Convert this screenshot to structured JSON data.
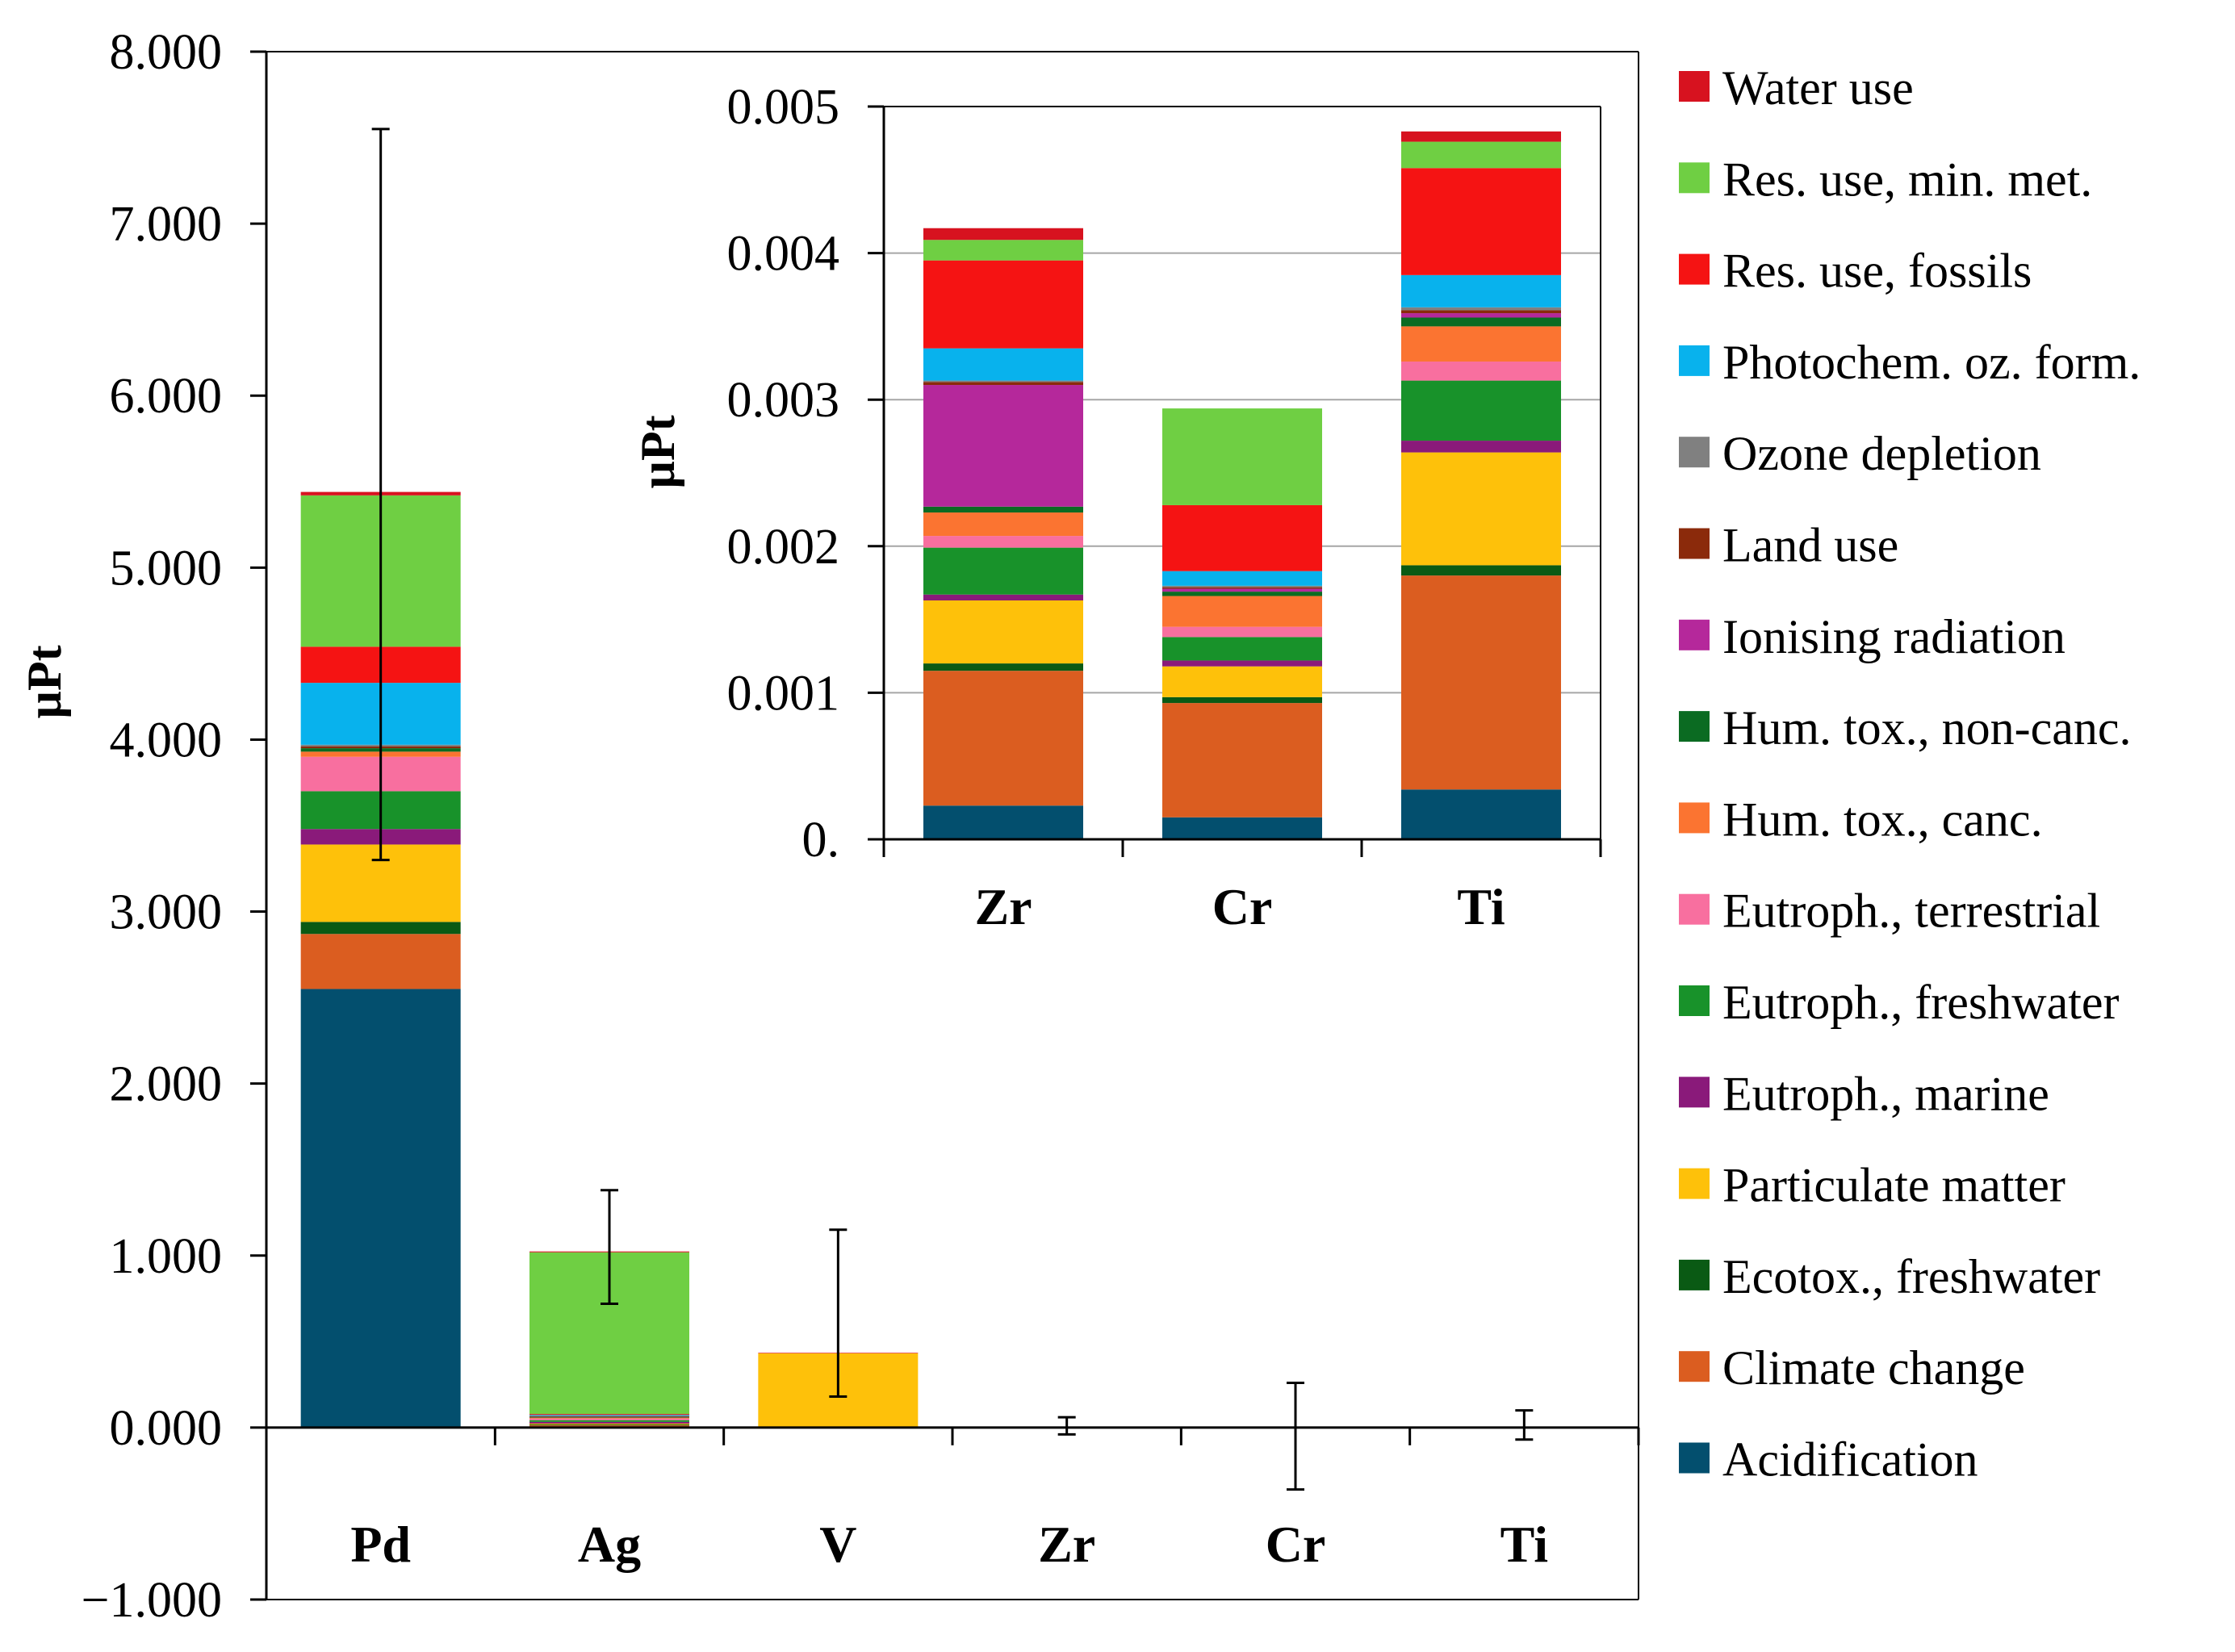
{
  "palette": {
    "Acidification": "#034f6e",
    "Climate change": "#db5d20",
    "Ecotox., freshwater": "#0a5a14",
    "Particulate matter": "#fec10a",
    "Eutroph., marine": "#8a1a7a",
    "Eutroph., freshwater": "#18922a",
    "Eutroph., terrestrial": "#f86f9f",
    "Hum. tox., canc.": "#fb7431",
    "Hum. tox., non-canc.": "#0b6b22",
    "Ionising radiation": "#b5289b",
    "Land use": "#8b2a0b",
    "Ozone depletion": "#808080",
    "Photochem. oz. form.": "#08b2ed",
    "Res. use, fossils": "#f51313",
    "Res. use, min. met.": "#6fcf43",
    "Water use": "#d7121f"
  },
  "legend": {
    "items": [
      {
        "label": "Water use",
        "color": "#d7121f"
      },
      {
        "label": "Res. use, min. met.",
        "color": "#6fcf43"
      },
      {
        "label": "Res. use, fossils",
        "color": "#f51313"
      },
      {
        "label": "Photochem. oz. form.",
        "color": "#08b2ed"
      },
      {
        "label": "Ozone depletion",
        "color": "#808080"
      },
      {
        "label": "Land use",
        "color": "#8b2a0b"
      },
      {
        "label": "Ionising radiation",
        "color": "#b5289b"
      },
      {
        "label": "Hum. tox., non-canc.",
        "color": "#0b6b22"
      },
      {
        "label": "Hum. tox., canc.",
        "color": "#fb7431"
      },
      {
        "label": "Eutroph., terrestrial",
        "color": "#f86f9f"
      },
      {
        "label": "Eutroph., freshwater",
        "color": "#18922a"
      },
      {
        "label": "Eutroph., marine",
        "color": "#8a1a7a"
      },
      {
        "label": "Particulate matter",
        "color": "#fec10a"
      },
      {
        "label": "Ecotox., freshwater",
        "color": "#0a5a14"
      },
      {
        "label": "Climate change",
        "color": "#db5d20"
      },
      {
        "label": "Acidification",
        "color": "#034f6e"
      }
    ]
  },
  "chart_data": [
    {
      "type": "bar",
      "stacked": true,
      "title": "",
      "xlabel": "",
      "ylabel": "µPt",
      "ylim": [
        -1,
        8
      ],
      "ytick_labels": [
        "−1.000",
        "0.000",
        "1.000",
        "2.000",
        "3.000",
        "4.000",
        "5.000",
        "6.000",
        "7.000",
        "8.000"
      ],
      "categories": [
        "Pd",
        "Ag",
        "V",
        "Zr",
        "Cr",
        "Ti"
      ],
      "error_bars": [
        {
          "low": 3.3,
          "high": 7.55
        },
        {
          "low": 0.72,
          "high": 1.38
        },
        {
          "low": 0.18,
          "high": 1.15
        },
        {
          "low": -0.04,
          "high": 0.06
        },
        {
          "low": -0.36,
          "high": 0.26
        },
        {
          "low": -0.07,
          "high": 0.1
        }
      ],
      "series": [
        {
          "name": "Acidification",
          "values": [
            2.55,
            0.003,
            0,
            0.00023,
            0.00015,
            0.00034
          ]
        },
        {
          "name": "Climate change",
          "values": [
            0.32,
            0.01,
            0.002,
            0.00092,
            0.00078,
            0.00146
          ]
        },
        {
          "name": "Ecotox., freshwater",
          "values": [
            0.07,
            0.005,
            0,
            5e-05,
            4e-05,
            7e-05
          ]
        },
        {
          "name": "Particulate matter",
          "values": [
            0.45,
            0.005,
            0.43,
            0.00043,
            0.00021,
            0.00077
          ]
        },
        {
          "name": "Eutroph., marine",
          "values": [
            0.09,
            0.01,
            0,
            4e-05,
            4e-05,
            8e-05
          ]
        },
        {
          "name": "Eutroph., freshwater",
          "values": [
            0.22,
            0.01,
            0,
            0.00032,
            0.00016,
            0.00041
          ]
        },
        {
          "name": "Eutroph., terrestrial",
          "values": [
            0.2,
            0.01,
            0,
            8e-05,
            7e-05,
            0.00013
          ]
        },
        {
          "name": "Hum. tox., canc.",
          "values": [
            0.03,
            0.005,
            0,
            0.00016,
            0.00021,
            0.00024
          ]
        },
        {
          "name": "Hum. tox., non-canc.",
          "values": [
            0.02,
            0.005,
            0,
            4e-05,
            3e-05,
            6e-05
          ]
        },
        {
          "name": "Ionising radiation",
          "values": [
            0,
            0.002,
            0,
            0.00083,
            2e-05,
            3e-05
          ]
        },
        {
          "name": "Land use",
          "values": [
            0.01,
            0.002,
            0,
            2e-05,
            1e-05,
            2e-05
          ]
        },
        {
          "name": "Ozone depletion",
          "values": [
            0.01,
            0.002,
            0,
            1e-05,
            1e-05,
            2e-05
          ]
        },
        {
          "name": "Photochem. oz. form.",
          "values": [
            0.36,
            0.005,
            0,
            0.00022,
            0.0001,
            0.00022
          ]
        },
        {
          "name": "Res. use, fossils",
          "values": [
            0.21,
            0.005,
            0,
            0.0006,
            0.00045,
            0.00073
          ]
        },
        {
          "name": "Res. use, min. met.",
          "values": [
            0.88,
            0.94,
            0,
            0.00014,
            0.00066,
            0.00018
          ]
        },
        {
          "name": "Water use",
          "values": [
            0.02,
            0.005,
            0.003,
            8e-05,
            0,
            7e-05
          ]
        }
      ]
    },
    {
      "type": "bar",
      "stacked": true,
      "title": "",
      "xlabel": "",
      "ylabel": "µPt",
      "ylim": [
        0,
        0.005
      ],
      "ytick_labels": [
        "0.",
        "0.001",
        "0.002",
        "0.003",
        "0.004",
        "0.005"
      ],
      "grid": true,
      "categories": [
        "Zr",
        "Cr",
        "Ti"
      ],
      "series": [
        {
          "name": "Acidification",
          "values": [
            0.00023,
            0.00015,
            0.00034
          ]
        },
        {
          "name": "Climate change",
          "values": [
            0.00092,
            0.00078,
            0.00146
          ]
        },
        {
          "name": "Ecotox., freshwater",
          "values": [
            5e-05,
            4e-05,
            7e-05
          ]
        },
        {
          "name": "Particulate matter",
          "values": [
            0.00043,
            0.00021,
            0.00077
          ]
        },
        {
          "name": "Eutroph., marine",
          "values": [
            4e-05,
            4e-05,
            8e-05
          ]
        },
        {
          "name": "Eutroph., freshwater",
          "values": [
            0.00032,
            0.00016,
            0.00041
          ]
        },
        {
          "name": "Eutroph., terrestrial",
          "values": [
            8e-05,
            7e-05,
            0.00013
          ]
        },
        {
          "name": "Hum. tox., canc.",
          "values": [
            0.00016,
            0.00021,
            0.00024
          ]
        },
        {
          "name": "Hum. tox., non-canc.",
          "values": [
            4e-05,
            3e-05,
            6e-05
          ]
        },
        {
          "name": "Ionising radiation",
          "values": [
            0.00083,
            2e-05,
            3e-05
          ]
        },
        {
          "name": "Land use",
          "values": [
            2e-05,
            1e-05,
            2e-05
          ]
        },
        {
          "name": "Ozone depletion",
          "values": [
            1e-05,
            1e-05,
            2e-05
          ]
        },
        {
          "name": "Photochem. oz. form.",
          "values": [
            0.00022,
            0.0001,
            0.00022
          ]
        },
        {
          "name": "Res. use, fossils",
          "values": [
            0.0006,
            0.00045,
            0.00073
          ]
        },
        {
          "name": "Res. use, min. met.",
          "values": [
            0.00014,
            0.00066,
            0.00018
          ]
        },
        {
          "name": "Water use",
          "values": [
            8e-05,
            0,
            7e-05
          ]
        }
      ]
    }
  ]
}
